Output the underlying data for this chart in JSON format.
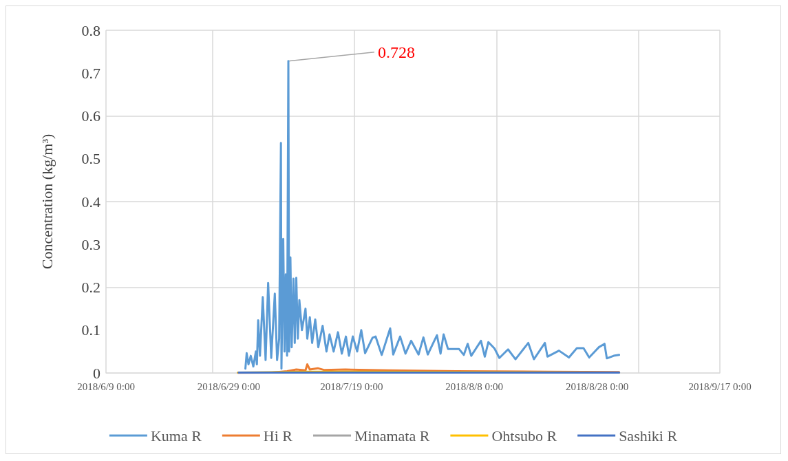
{
  "chart_data": {
    "type": "line",
    "ylabel": "Concentration (kg/m³)",
    "xlim": [
      "2018-06-09",
      "2018-09-17"
    ],
    "xticks": [
      {
        "value": "2018-06-09",
        "label": "2018/6/9 0:00"
      },
      {
        "value": "2018-06-29",
        "label": "2018/6/29 0:00"
      },
      {
        "value": "2018-07-19",
        "label": "2018/7/19 0:00"
      },
      {
        "value": "2018-08-08",
        "label": "2018/8/8 0:00"
      },
      {
        "value": "2018-08-28",
        "label": "2018/8/28 0:00"
      },
      {
        "value": "2018-09-17",
        "label": "2018/9/17 0:00"
      }
    ],
    "ylim": [
      0,
      0.8
    ],
    "yticks": [
      0,
      0.1,
      0.2,
      0.3,
      0.4,
      0.5,
      0.6,
      0.7,
      0.8
    ],
    "grid": true,
    "legend": "bottom",
    "marker": "none",
    "line_style": "solid",
    "annotations": [
      {
        "text": "0.728",
        "x": "2018-07-08T17:00",
        "y": 0.728
      }
    ],
    "series": [
      {
        "name": "Kuma R",
        "color": "#5b9bd5",
        "x": [
          "2018-07-01T17:00",
          "2018-07-01T22:00",
          "2018-07-02T05:00",
          "2018-07-02T14:00",
          "2018-07-03T00:00",
          "2018-07-03T10:00",
          "2018-07-03T14:00",
          "2018-07-03T19:00",
          "2018-07-04T02:00",
          "2018-07-04T13:00",
          "2018-07-05T00:00",
          "2018-07-05T10:00",
          "2018-07-05T22:00",
          "2018-07-06T12:00",
          "2018-07-06T21:00",
          "2018-07-07T05:00",
          "2018-07-07T12:00",
          "2018-07-07T14:00",
          "2018-07-07T21:00",
          "2018-07-08T02:00",
          "2018-07-08T07:00",
          "2018-07-08T12:00",
          "2018-07-08T17:00",
          "2018-07-08T20:00",
          "2018-07-09T01:00",
          "2018-07-09T06:00",
          "2018-07-09T13:00",
          "2018-07-09T18:00",
          "2018-07-10T00:00",
          "2018-07-10T06:00",
          "2018-07-10T12:00",
          "2018-07-10T22:00",
          "2018-07-11T12:00",
          "2018-07-11T19:00",
          "2018-07-12T05:00",
          "2018-07-12T14:00",
          "2018-07-13T02:00",
          "2018-07-13T14:00",
          "2018-07-14T07:00",
          "2018-07-14T22:00",
          "2018-07-15T10:00",
          "2018-07-16T02:00",
          "2018-07-16T19:00",
          "2018-07-17T10:00",
          "2018-07-18T02:00",
          "2018-07-18T14:00",
          "2018-07-19T05:00",
          "2018-07-19T22:00",
          "2018-07-20T14:00",
          "2018-07-21T05:00",
          "2018-07-22T10:00",
          "2018-07-22T22:00",
          "2018-07-23T22:00",
          "2018-07-25T07:00",
          "2018-07-25T19:00",
          "2018-07-26T22:00",
          "2018-07-27T19:00",
          "2018-07-28T17:00",
          "2018-07-29T22:00",
          "2018-07-30T17:00",
          "2018-07-31T10:00",
          "2018-08-01T22:00",
          "2018-08-02T12:00",
          "2018-08-03T00:00",
          "2018-08-03T17:00",
          "2018-08-05T12:00",
          "2018-08-06T07:00",
          "2018-08-06T22:00",
          "2018-08-07T12:00",
          "2018-08-09T02:00",
          "2018-08-09T17:00",
          "2018-08-10T07:00",
          "2018-08-11T07:00",
          "2018-08-12T02:00",
          "2018-08-13T12:00",
          "2018-08-14T17:00",
          "2018-08-16T19:00",
          "2018-08-17T17:00",
          "2018-08-19T12:00",
          "2018-08-19T22:00",
          "2018-08-21T19:00",
          "2018-08-23T10:00",
          "2018-08-24T17:00",
          "2018-08-25T19:00",
          "2018-08-26T17:00",
          "2018-08-28T07:00",
          "2018-08-29T05:00",
          "2018-08-29T14:00",
          "2018-08-30T17:00",
          "2018-08-31T14:00"
        ],
        "values": [
          0.01,
          0.046,
          0.02,
          0.04,
          0.015,
          0.05,
          0.02,
          0.123,
          0.04,
          0.177,
          0.03,
          0.21,
          0.035,
          0.185,
          0.03,
          0.08,
          0.537,
          0.01,
          0.313,
          0.05,
          0.23,
          0.04,
          0.728,
          0.05,
          0.27,
          0.06,
          0.22,
          0.07,
          0.222,
          0.08,
          0.17,
          0.1,
          0.15,
          0.08,
          0.13,
          0.07,
          0.125,
          0.06,
          0.11,
          0.05,
          0.09,
          0.05,
          0.095,
          0.045,
          0.085,
          0.04,
          0.085,
          0.05,
          0.1,
          0.046,
          0.082,
          0.085,
          0.042,
          0.104,
          0.043,
          0.085,
          0.045,
          0.075,
          0.043,
          0.083,
          0.043,
          0.088,
          0.045,
          0.09,
          0.056,
          0.056,
          0.042,
          0.068,
          0.04,
          0.075,
          0.038,
          0.072,
          0.057,
          0.035,
          0.055,
          0.032,
          0.07,
          0.032,
          0.07,
          0.038,
          0.052,
          0.036,
          0.058,
          0.058,
          0.036,
          0.06,
          0.068,
          0.034,
          0.04,
          0.042
        ]
      },
      {
        "name": "Hi R",
        "color": "#ed7d31",
        "x": [
          "2018-06-30T12:00",
          "2018-07-06T00:00",
          "2018-07-08T12:00",
          "2018-07-10T00:00",
          "2018-07-11T12:00",
          "2018-07-11T19:00",
          "2018-07-12T05:00",
          "2018-07-13T12:00",
          "2018-07-14T12:00",
          "2018-07-18T00:00",
          "2018-07-25T00:00",
          "2018-08-05T00:00",
          "2018-08-20T00:00",
          "2018-08-31T14:00"
        ],
        "values": [
          0,
          0.001,
          0.004,
          0.008,
          0.006,
          0.02,
          0.008,
          0.011,
          0.007,
          0.008,
          0.006,
          0.004,
          0.003,
          0.002
        ]
      },
      {
        "name": "Minamata R",
        "color": "#a5a5a5"
      },
      {
        "name": "Ohtsubo R",
        "color": "#ffc000",
        "x": [
          "2018-06-30T12:00",
          "2018-07-12T00:00",
          "2018-08-31T14:00"
        ],
        "values": [
          0.001,
          0.003,
          0.001
        ]
      },
      {
        "name": "Sashiki R",
        "color": "#4472c4",
        "x": [
          "2018-06-30T15:00",
          "2018-07-20T00:00",
          "2018-08-31T14:00"
        ],
        "values": [
          0.001,
          0.001,
          0.001
        ]
      }
    ]
  }
}
